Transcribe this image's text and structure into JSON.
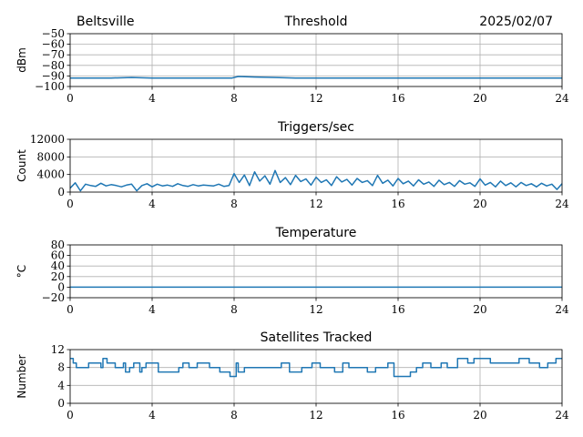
{
  "header": {
    "location": "Beltsville",
    "date": "2025/02/07"
  },
  "chart_data": [
    {
      "type": "line",
      "title": "Threshold",
      "ylabel": "dBm",
      "xlabel": "",
      "xlim": [
        0,
        24
      ],
      "ylim": [
        -100,
        -50
      ],
      "xticks": [
        0,
        4,
        8,
        12,
        16,
        20,
        24
      ],
      "yticks": [
        -100,
        -90,
        -80,
        -70,
        -60,
        -50
      ],
      "xtick_labels": [
        "0",
        "4",
        "8",
        "12",
        "16",
        "20",
        "24"
      ],
      "ytick_labels": [
        "−100",
        "−90",
        "−80",
        "−70",
        "−60",
        "−50"
      ],
      "grid": true,
      "color": "#1f77b4",
      "series": [
        {
          "x": [
            0,
            1,
            2,
            3,
            4,
            5,
            6,
            7,
            7.9,
            8.2,
            9,
            10,
            11,
            12,
            13,
            14,
            15,
            16,
            17,
            18,
            19,
            20,
            21,
            22,
            23,
            24
          ],
          "y": [
            -92,
            -92,
            -92,
            -91.5,
            -92,
            -92,
            -92,
            -92,
            -92,
            -90.5,
            -91,
            -91.5,
            -92,
            -92,
            -92,
            -92,
            -92,
            -92,
            -92,
            -92,
            -92,
            -92,
            -92,
            -92,
            -92,
            -92
          ]
        }
      ]
    },
    {
      "type": "line",
      "title": "Triggers/sec",
      "ylabel": "Count",
      "xlabel": "",
      "xlim": [
        0,
        24
      ],
      "ylim": [
        0,
        12000
      ],
      "xticks": [
        0,
        4,
        8,
        12,
        16,
        20,
        24
      ],
      "yticks": [
        0,
        4000,
        8000,
        12000
      ],
      "xtick_labels": [
        "0",
        "4",
        "8",
        "12",
        "16",
        "20",
        "24"
      ],
      "ytick_labels": [
        "0",
        "4000",
        "8000",
        "12000"
      ],
      "grid": true,
      "color": "#1f77b4",
      "series": [
        {
          "x": [
            0,
            0.25,
            0.5,
            0.75,
            1,
            1.25,
            1.5,
            1.75,
            2,
            2.25,
            2.5,
            2.75,
            3,
            3.25,
            3.5,
            3.75,
            4,
            4.25,
            4.5,
            4.75,
            5,
            5.25,
            5.5,
            5.75,
            6,
            6.25,
            6.5,
            6.75,
            7,
            7.25,
            7.5,
            7.75,
            8,
            8.25,
            8.5,
            8.75,
            9,
            9.25,
            9.5,
            9.75,
            10,
            10.25,
            10.5,
            10.75,
            11,
            11.25,
            11.5,
            11.75,
            12,
            12.25,
            12.5,
            12.75,
            13,
            13.25,
            13.5,
            13.75,
            14,
            14.25,
            14.5,
            14.75,
            15,
            15.25,
            15.5,
            15.75,
            16,
            16.25,
            16.5,
            16.75,
            17,
            17.25,
            17.5,
            17.75,
            18,
            18.25,
            18.5,
            18.75,
            19,
            19.25,
            19.5,
            19.75,
            20,
            20.25,
            20.5,
            20.75,
            21,
            21.25,
            21.5,
            21.75,
            22,
            22.25,
            22.5,
            22.75,
            23,
            23.25,
            23.5,
            23.75,
            24
          ],
          "y": [
            900,
            2100,
            300,
            1800,
            1500,
            1300,
            2000,
            1400,
            1700,
            1500,
            1200,
            1600,
            1800,
            300,
            1500,
            1900,
            1200,
            1800,
            1400,
            1600,
            1300,
            1900,
            1500,
            1300,
            1700,
            1400,
            1600,
            1500,
            1400,
            1800,
            1300,
            1500,
            4200,
            2200,
            3900,
            1500,
            4600,
            2500,
            3700,
            1800,
            4900,
            2200,
            3300,
            1700,
            3800,
            2400,
            3000,
            1600,
            3400,
            2200,
            2800,
            1500,
            3500,
            2300,
            2900,
            1600,
            3100,
            2200,
            2600,
            1500,
            3800,
            2000,
            2700,
            1400,
            3100,
            1900,
            2500,
            1400,
            2800,
            1800,
            2300,
            1300,
            2700,
            1700,
            2200,
            1300,
            2600,
            1800,
            2100,
            1300,
            3000,
            1600,
            2200,
            1200,
            2500,
            1500,
            2100,
            1200,
            2200,
            1500,
            1900,
            1200,
            2000,
            1400,
            1800,
            600,
            1900
          ]
        }
      ]
    },
    {
      "type": "line",
      "title": "Temperature",
      "ylabel": "°C",
      "xlabel": "",
      "xlim": [
        0,
        24
      ],
      "ylim": [
        -20,
        80
      ],
      "xticks": [
        0,
        4,
        8,
        12,
        16,
        20,
        24
      ],
      "yticks": [
        -20,
        0,
        20,
        40,
        60,
        80
      ],
      "xtick_labels": [
        "0",
        "4",
        "8",
        "12",
        "16",
        "20",
        "24"
      ],
      "ytick_labels": [
        "−20",
        "0",
        "20",
        "40",
        "60",
        "80"
      ],
      "grid": true,
      "color": "#1f77b4",
      "series": [
        {
          "x": [
            0,
            24
          ],
          "y": [
            0,
            0
          ]
        }
      ]
    },
    {
      "type": "line",
      "title": "Satellites Tracked",
      "ylabel": "Number",
      "xlabel": "",
      "xlim": [
        0,
        24
      ],
      "ylim": [
        0,
        12
      ],
      "xticks": [
        0,
        4,
        8,
        12,
        16,
        20,
        24
      ],
      "yticks": [
        0,
        4,
        8,
        12
      ],
      "xtick_labels": [
        "0",
        "4",
        "8",
        "12",
        "16",
        "20",
        "24"
      ],
      "ytick_labels": [
        "0",
        "4",
        "8",
        "12"
      ],
      "grid": true,
      "color": "#1f77b4",
      "series": [
        {
          "step": true,
          "x": [
            0,
            0.15,
            0.3,
            0.9,
            1.5,
            1.6,
            1.8,
            2.2,
            2.6,
            2.7,
            2.9,
            3.1,
            3.4,
            3.5,
            3.7,
            4.3,
            5.3,
            5.5,
            5.8,
            6.2,
            6.8,
            7.3,
            7.8,
            8.1,
            8.2,
            8.5,
            9.5,
            10.3,
            10.7,
            11.3,
            11.8,
            12.2,
            12.9,
            13.3,
            13.6,
            14.5,
            14.9,
            15.5,
            15.8,
            16.6,
            16.9,
            17.2,
            17.6,
            18.1,
            18.4,
            18.9,
            19.4,
            19.7,
            20.5,
            21.3,
            21.9,
            22.4,
            22.9,
            23.3,
            23.7,
            24
          ],
          "y": [
            10,
            9,
            8,
            9,
            8,
            10,
            9,
            8,
            9,
            7,
            8,
            9,
            7,
            8,
            9,
            7,
            8,
            9,
            8,
            9,
            8,
            7,
            6,
            9,
            7,
            8,
            8,
            9,
            7,
            8,
            9,
            8,
            7,
            9,
            8,
            7,
            8,
            9,
            6,
            7,
            8,
            9,
            8,
            9,
            8,
            10,
            9,
            10,
            9,
            9,
            10,
            9,
            8,
            9,
            10,
            10
          ]
        }
      ]
    }
  ]
}
